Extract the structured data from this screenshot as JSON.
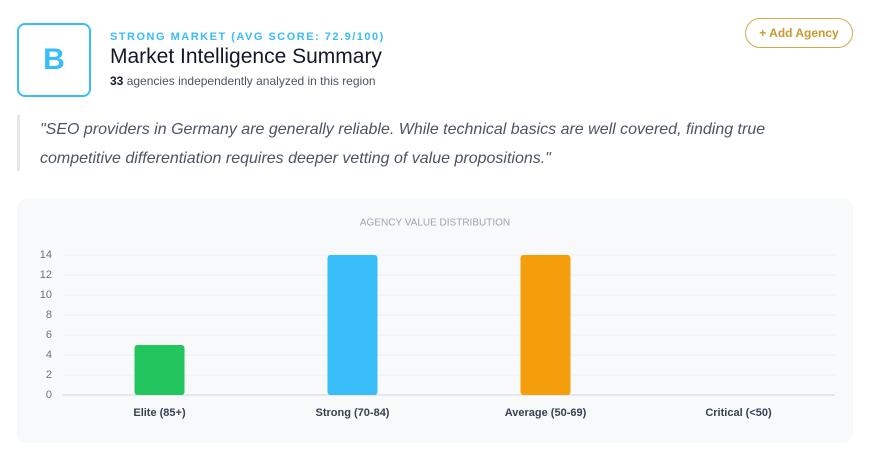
{
  "header": {
    "badge": "B",
    "eyebrow": "STRONG MARKET (AVG SCORE: 72.9/100)",
    "title": "Market Intelligence Summary",
    "count": "33",
    "subtitle": "agencies independently analyzed in this region",
    "button": "+ Add Agency"
  },
  "quote": [
    "\"SEO providers in Germany are generally reliable. While technical basics are well covered, finding true",
    "competitive differentiation requires deeper vetting of value propositions.\""
  ],
  "chart_data": {
    "type": "bar",
    "title": "AGENCY VALUE DISTRIBUTION",
    "categories": [
      "Elite (85+)",
      "Strong (70-84)",
      "Average (50-69)",
      "Critical (<50)"
    ],
    "values": [
      5,
      14,
      14,
      0
    ],
    "colors": [
      "#22c55e",
      "#38bdf8",
      "#f59e0b",
      "#ef4444"
    ],
    "ylim": [
      0,
      14
    ],
    "yticks": [
      0,
      2,
      4,
      6,
      8,
      10,
      12,
      14
    ],
    "grid": true
  }
}
